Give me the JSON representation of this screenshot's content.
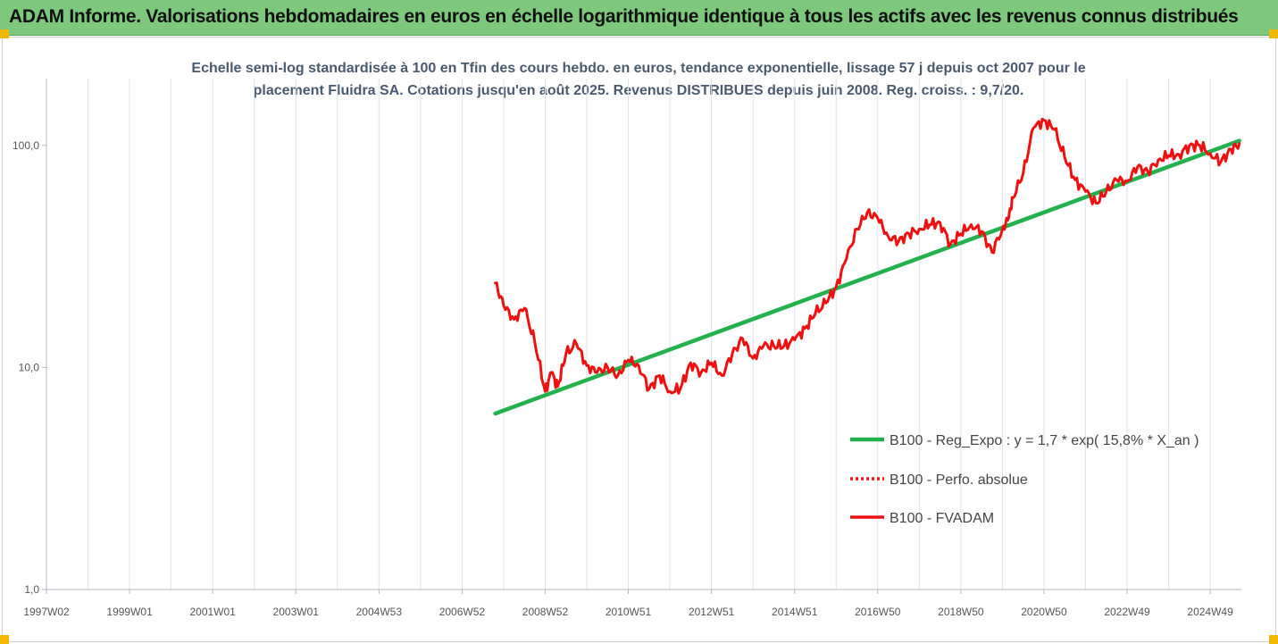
{
  "header": {
    "title": "ADAM Informe. Valorisations hebdomadaires en euros en échelle logarithmique identique à tous les actifs avec les revenus connus distribués"
  },
  "chart_data": {
    "type": "line",
    "title": "Echelle semi-log standardisée à 100 en Tfin des cours hebdo. en euros, tendance exponentielle, lissage 57 j depuis oct 2007 pour le placement Fluidra SA. Cotations jusqu'en août 2025. Revenus DISTRIBUES depuis juin 2008. Reg. croiss. : 9,7/20.",
    "title_lines": [
      "Echelle semi-log standardisée à 100 en Tfin des cours hebdo. en euros, tendance exponentielle, lissage 57 j depuis oct 2007 pour le",
      "placement Fluidra SA. Cotations jusqu'en août 2025. Revenus DISTRIBUES depuis juin 2008. Reg. croiss. : 9,7/20."
    ],
    "y_scale": "log",
    "ylim": [
      1,
      200
    ],
    "xlim": [
      1997.0,
      2025.75
    ],
    "y_ticks": [
      1,
      10,
      100
    ],
    "y_tick_labels": [
      "1,0",
      "10,0",
      "100,0"
    ],
    "x_ticks": [
      1997.0,
      1999.0,
      2001.0,
      2003.0,
      2005.0,
      2007.0,
      2009.0,
      2011.0,
      2013.0,
      2015.0,
      2017.0,
      2019.0,
      2021.0,
      2023.0,
      2025.0
    ],
    "x_tick_labels": [
      "1997W02",
      "1999W01",
      "2001W01",
      "2003W01",
      "2004W53",
      "2006W52",
      "2008W52",
      "2010W51",
      "2012W51",
      "2014W51",
      "2016W50",
      "2018W50",
      "2020W50",
      "2022W49",
      "2024W49"
    ],
    "grid": "vertical",
    "legend_position": "bottom-right",
    "colors": {
      "trend": "#22b14c",
      "price": "#ee1111",
      "banner": "#7dc87d",
      "subtitle": "#4a5a6e"
    },
    "series": [
      {
        "name": "B100 - Reg_Expo : y = 1,7 * exp( 15,8% *  X_an )",
        "style": "solid",
        "x": [
          2007.8,
          2025.7
        ],
        "y": [
          6.2,
          105
        ]
      },
      {
        "name": "B100 - Perfo. absolue",
        "style": "dotted",
        "x": [],
        "y": []
      },
      {
        "name": "B100 - FVADAM",
        "style": "solid",
        "x": [
          2007.8,
          2008.0,
          2008.25,
          2008.5,
          2008.75,
          2009.0,
          2009.15,
          2009.3,
          2009.5,
          2009.75,
          2010.0,
          2010.25,
          2010.5,
          2010.75,
          2011.0,
          2011.25,
          2011.5,
          2011.75,
          2012.0,
          2012.25,
          2012.5,
          2012.75,
          2013.0,
          2013.25,
          2013.5,
          2013.75,
          2014.0,
          2014.25,
          2014.5,
          2014.75,
          2015.0,
          2015.25,
          2015.5,
          2015.75,
          2016.0,
          2016.25,
          2016.5,
          2016.75,
          2017.0,
          2017.25,
          2017.5,
          2017.75,
          2018.0,
          2018.25,
          2018.5,
          2018.75,
          2019.0,
          2019.25,
          2019.5,
          2019.75,
          2020.0,
          2020.15,
          2020.25,
          2020.5,
          2020.75,
          2021.0,
          2021.25,
          2021.5,
          2021.75,
          2022.0,
          2022.25,
          2022.5,
          2022.75,
          2023.0,
          2023.25,
          2023.5,
          2023.75,
          2024.0,
          2024.25,
          2024.5,
          2024.75,
          2025.0,
          2025.25,
          2025.5,
          2025.7
        ],
        "y": [
          24,
          19,
          16.5,
          18.5,
          13,
          7.8,
          9.5,
          8.2,
          11.5,
          12.8,
          10.2,
          9.5,
          10,
          9.2,
          10.8,
          10.2,
          8,
          9.2,
          7.8,
          8,
          10.5,
          9.5,
          10.5,
          9.2,
          11.5,
          13.5,
          11,
          12.5,
          12.5,
          12.5,
          13.3,
          15,
          17.5,
          19.5,
          23,
          31,
          42,
          50,
          47,
          39,
          37,
          40,
          42,
          44,
          45,
          36,
          40,
          44,
          41,
          33,
          42,
          47,
          58,
          75,
          120,
          130,
          118,
          88,
          70,
          62,
          55,
          62,
          70,
          69,
          80,
          76,
          86,
          90,
          91,
          100,
          100,
          92,
          84,
          96,
          102
        ]
      }
    ]
  }
}
